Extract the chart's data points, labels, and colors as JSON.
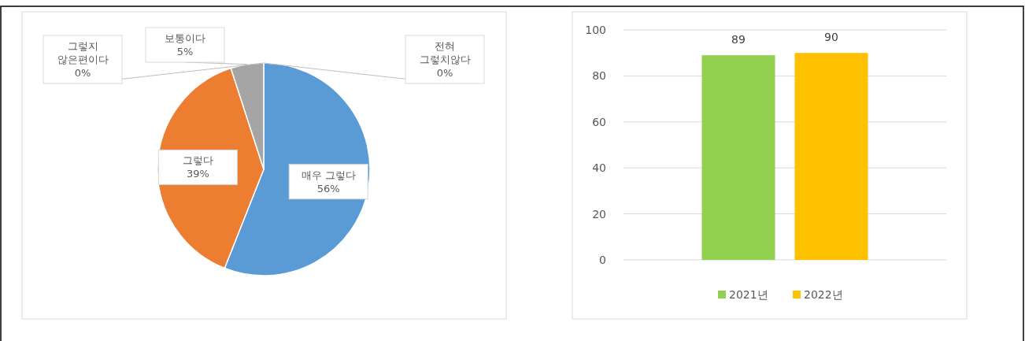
{
  "chart_data": [
    {
      "type": "pie",
      "categories": [
        "매우 그렇다",
        "그렇다",
        "보통이다",
        "그렇지\n않은편이다",
        "전혀\n그렇치않다"
      ],
      "values": [
        56,
        39,
        5,
        0,
        0
      ],
      "colors": [
        "#5b9bd5",
        "#ed7d31",
        "#a5a5a5",
        null,
        null
      ],
      "value_labels": [
        "56%",
        "39%",
        "5%",
        "0%",
        "0%"
      ],
      "legend": false
    },
    {
      "type": "bar",
      "categories": [
        null
      ],
      "series": [
        {
          "name": "2021년",
          "color": "#92d050",
          "values": [
            89
          ]
        },
        {
          "name": "2022년",
          "color": "#ffc000",
          "values": [
            90
          ]
        }
      ],
      "ylim": [
        0,
        100
      ],
      "yticks": [
        0,
        20,
        40,
        60,
        80,
        100
      ],
      "grid": "y",
      "legend": "bottom",
      "data_labels": true
    }
  ]
}
